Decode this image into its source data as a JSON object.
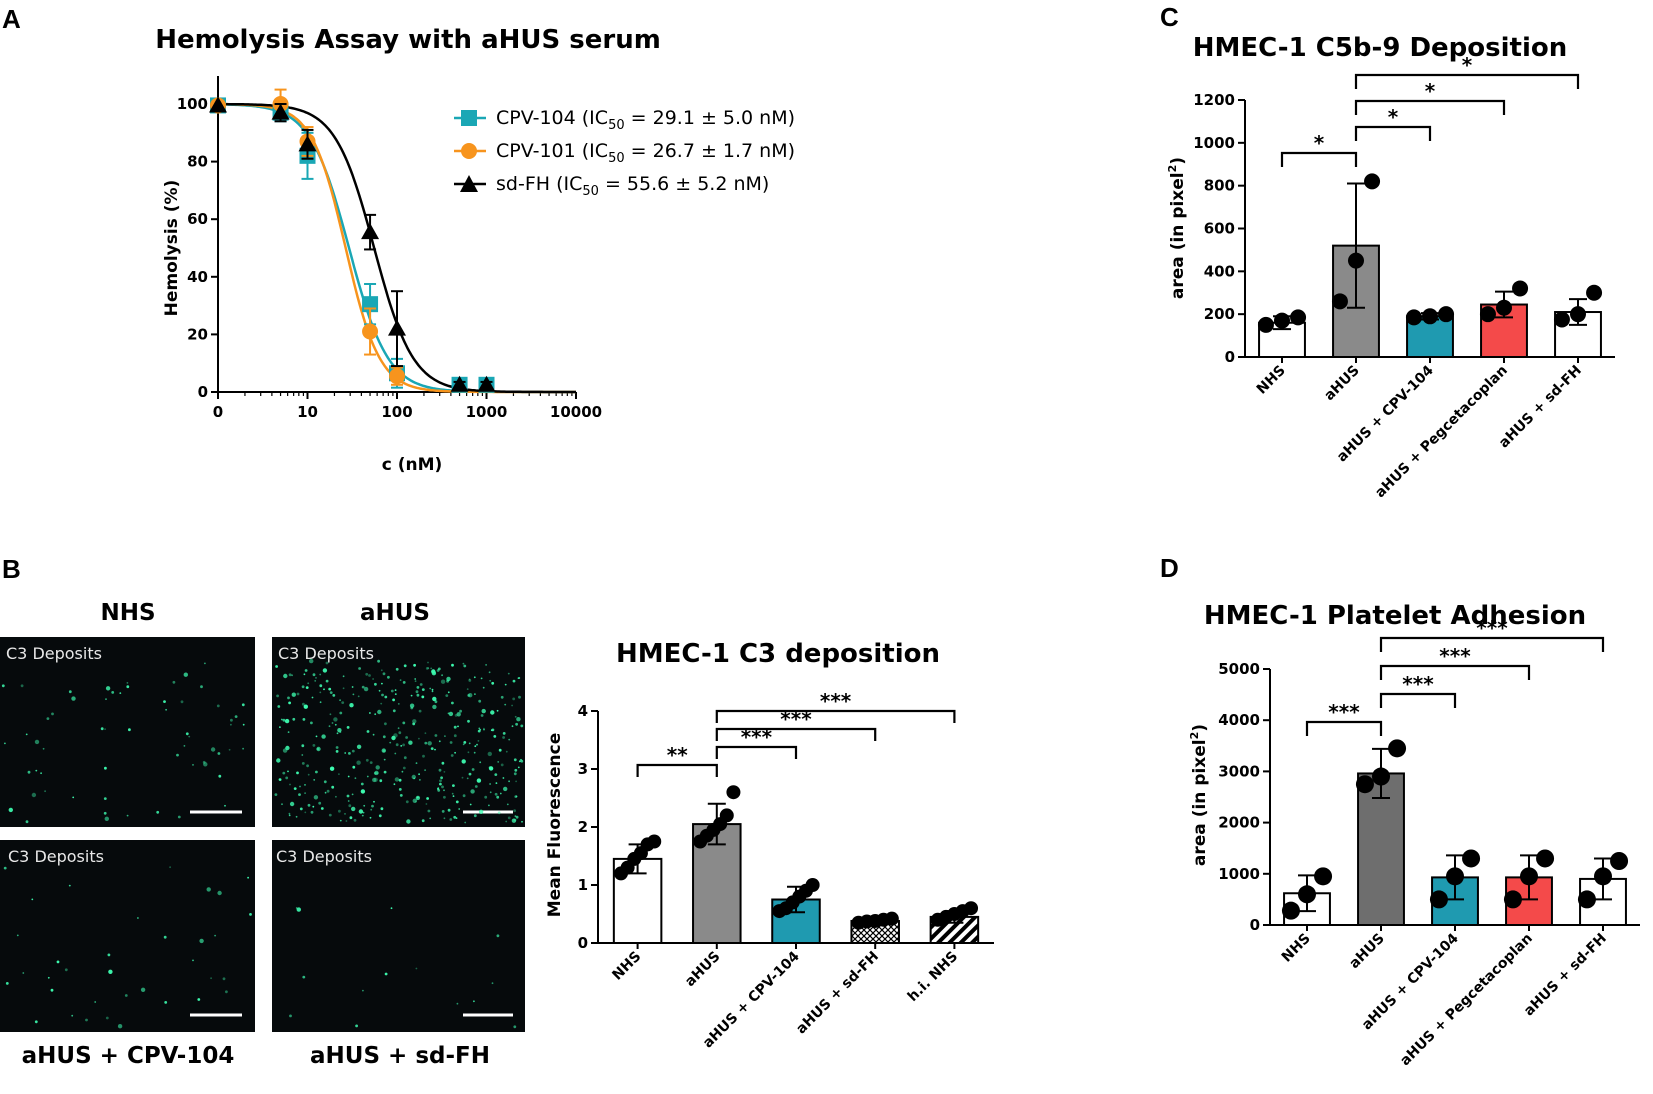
{
  "panels": {
    "A": {
      "letter": "A",
      "chart_data": {
        "type": "line",
        "title": "Hemolysis Assay with aHUS serum",
        "xlabel": "c (nM)",
        "ylabel": "Hemolysis (%)",
        "xscale": "log",
        "xticks": [
          "0",
          "10",
          "100",
          "1000",
          "10000"
        ],
        "yticks": [
          "0",
          "20",
          "40",
          "60",
          "80",
          "100"
        ],
        "xlim": [
          1,
          10000
        ],
        "ylim": [
          0,
          100
        ],
        "legend_position": "top-right",
        "series": [
          {
            "name": "CPV-104 (IC50 = 29.1 ± 5.0 nM)",
            "legend_prefix": "CPV-104 (IC",
            "legend_sub": "50",
            "legend_suffix": " = 29.1 ± 5.0 nM)",
            "color": "#1aa7b5",
            "marker": "square",
            "x": [
              1,
              5,
              10,
              50,
              100,
              500,
              1000
            ],
            "y": [
              99.5,
              97,
              82,
              30.5,
              6.5,
              2.5,
              2.5
            ],
            "err": [
              0,
              3,
              8,
              7,
              5,
              1,
              1
            ],
            "ic50": 29.1,
            "hill": 2.0
          },
          {
            "name": "CPV-101 (IC50 = 26.7 ± 1.7 nM)",
            "legend_prefix": "CPV-101 (IC",
            "legend_sub": "50",
            "legend_suffix": " = 26.7 ± 1.7 nM)",
            "color": "#f7941d",
            "marker": "circle",
            "x": [
              1,
              5,
              10,
              50,
              100
            ],
            "y": [
              99.5,
              100,
              87,
              21,
              5.5
            ],
            "err": [
              0,
              5,
              5,
              8,
              3
            ],
            "ic50": 26.7,
            "hill": 2.3
          },
          {
            "name": "sd-FH (IC50 = 55.6 ± 5.2 nM)",
            "legend_prefix": "sd-FH (IC",
            "legend_sub": "50",
            "legend_suffix": " = 55.6 ± 5.2 nM)",
            "color": "#000000",
            "marker": "triangle",
            "x": [
              1,
              5,
              10,
              50,
              100,
              500,
              1000
            ],
            "y": [
              99.5,
              97,
              86,
              55.5,
              22,
              2.5,
              2.5
            ],
            "err": [
              0,
              3,
              5,
              6,
              13,
              1,
              1
            ],
            "ic50": 55.6,
            "hill": 2.0
          }
        ]
      }
    },
    "B": {
      "letter": "B",
      "images": [
        {
          "label": "NHS",
          "tag": "C3 Deposits",
          "density": 60
        },
        {
          "label": "aHUS",
          "tag": "C3 Deposits",
          "density": 420
        },
        {
          "label": "aHUS + CPV-104",
          "tag": "C3 Deposits",
          "density": 35
        },
        {
          "label": "aHUS + sd-FH",
          "tag": "C3 Deposits",
          "density": 14
        }
      ],
      "image_bg": "#060a0c",
      "dot_color": "#3dfcb0",
      "chart_data": {
        "type": "bar",
        "title": "HMEC-1  C3 deposition",
        "xlabel": "",
        "ylabel": "Mean Fluorescence",
        "ylim": [
          0,
          4
        ],
        "yticks": [
          "0",
          "1",
          "2",
          "3",
          "4"
        ],
        "categories": [
          "NHS",
          "aHUS",
          "aHUS + CPV-104",
          "aHUS + sd-FH",
          "h.i. NHS"
        ],
        "values": [
          1.45,
          2.05,
          0.75,
          0.38,
          0.45
        ],
        "err": [
          0.25,
          0.35,
          0.22,
          0.05,
          0.1
        ],
        "fills": [
          "#ffffff",
          "#8a8a8a",
          "#1f9ab0",
          "crosshatch",
          "stripes"
        ],
        "points": [
          [
            1.2,
            1.3,
            1.45,
            1.55,
            1.7,
            1.75
          ],
          [
            1.75,
            1.85,
            1.95,
            2.05,
            2.2,
            2.6
          ],
          [
            0.55,
            0.6,
            0.7,
            0.8,
            0.9,
            1.0
          ],
          [
            0.35,
            0.37,
            0.38,
            0.4,
            0.42
          ],
          [
            0.4,
            0.45,
            0.5,
            0.55,
            0.6
          ]
        ],
        "significance": [
          {
            "from": 0,
            "to": 1,
            "label": "**"
          },
          {
            "from": 1,
            "to": 2,
            "label": "***"
          },
          {
            "from": 1,
            "to": 3,
            "label": "***"
          },
          {
            "from": 1,
            "to": 4,
            "label": "***"
          }
        ]
      }
    },
    "C": {
      "letter": "C",
      "chart_data": {
        "type": "bar",
        "title": "HMEC-1  C5b-9 Deposition",
        "xlabel": "",
        "ylabel": "area (in pixel²)",
        "ylabel_main": "area (in pixel",
        "ylabel_sup": "2",
        "ylabel_end": ")",
        "ylim": [
          0,
          1200
        ],
        "yticks": [
          "0",
          "200",
          "400",
          "600",
          "800",
          "1000",
          "1200"
        ],
        "categories": [
          "NHS",
          "aHUS",
          "aHUS + CPV-104",
          "aHUS + Pegcetacoplan",
          "aHUS + sd-FH"
        ],
        "values": [
          160,
          520,
          190,
          245,
          210
        ],
        "err": [
          30,
          290,
          15,
          60,
          60
        ],
        "fills": [
          "#ffffff",
          "#8a8a8a",
          "#1f9ab0",
          "#f44a4a",
          "#ffffff"
        ],
        "points": [
          [
            150,
            170,
            185
          ],
          [
            260,
            450,
            820
          ],
          [
            185,
            190,
            200
          ],
          [
            200,
            230,
            320
          ],
          [
            175,
            200,
            300
          ]
        ],
        "significance": [
          {
            "from": 0,
            "to": 1,
            "label": "*"
          },
          {
            "from": 1,
            "to": 2,
            "label": "*"
          },
          {
            "from": 1,
            "to": 3,
            "label": "*"
          },
          {
            "from": 1,
            "to": 4,
            "label": "*"
          }
        ]
      }
    },
    "D": {
      "letter": "D",
      "chart_data": {
        "type": "bar",
        "title": "HMEC-1  Platelet Adhesion",
        "xlabel": "",
        "ylabel": "area (in pixel²)",
        "ylabel_main": "area (in pixel",
        "ylabel_sup": "2",
        "ylabel_end": ")",
        "ylim": [
          0,
          5000
        ],
        "yticks": [
          "0",
          "1000",
          "2000",
          "3000",
          "4000",
          "5000"
        ],
        "categories": [
          "NHS",
          "aHUS",
          "aHUS + CPV-104",
          "aHUS + Pegcetacoplan",
          "aHUS + sd-FH"
        ],
        "values": [
          620,
          2960,
          930,
          930,
          900
        ],
        "err": [
          350,
          480,
          430,
          430,
          400
        ],
        "fills": [
          "#ffffff",
          "#6e6e6e",
          "#1f9ab0",
          "#f44a4a",
          "#ffffff"
        ],
        "points": [
          [
            280,
            600,
            950
          ],
          [
            2750,
            2900,
            3450
          ],
          [
            500,
            950,
            1300
          ],
          [
            500,
            950,
            1300
          ],
          [
            500,
            950,
            1250
          ]
        ],
        "significance": [
          {
            "from": 0,
            "to": 1,
            "label": "***"
          },
          {
            "from": 1,
            "to": 2,
            "label": "***"
          },
          {
            "from": 1,
            "to": 3,
            "label": "***"
          },
          {
            "from": 1,
            "to": 4,
            "label": "***"
          }
        ]
      }
    }
  }
}
